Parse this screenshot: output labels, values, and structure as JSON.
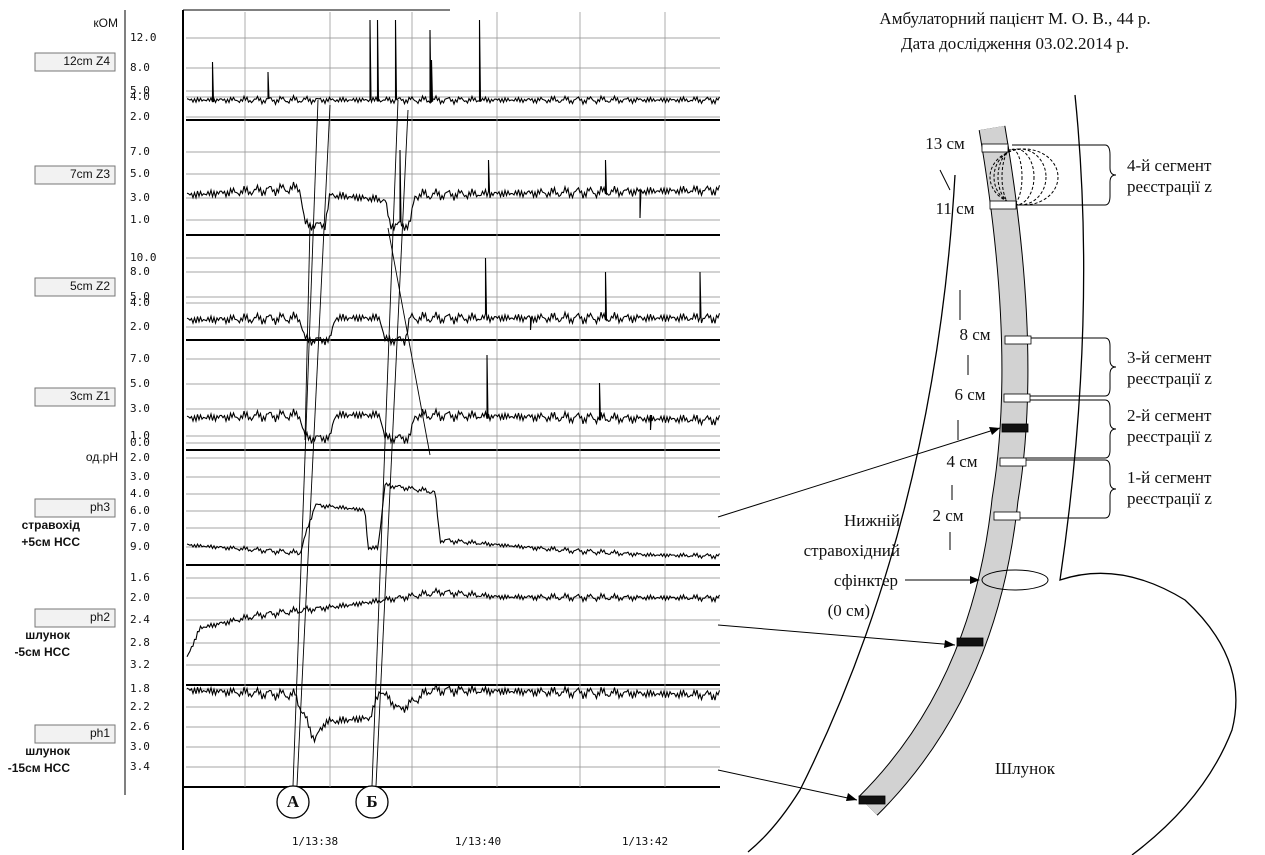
{
  "header": {
    "lines": [
      "Амбулаторний пацієнт М. О. В., 44 р.",
      "Дата дослідження 03.02.2014 р."
    ]
  },
  "recording": {
    "impedance_unit": "кОМ",
    "ph_unit": "од.pH",
    "channels": [
      {
        "button": "12cm Z4",
        "labels": [],
        "ticks": [
          "12.0",
          "8.0",
          "5.0",
          "4.0",
          "2.0"
        ]
      },
      {
        "button": "7cm Z3",
        "labels": [],
        "ticks": [
          "7.0",
          "5.0",
          "3.0",
          "1.0"
        ]
      },
      {
        "button": "5cm Z2",
        "labels": [],
        "ticks": [
          "10.0",
          "8.0",
          "5.0",
          "4.0",
          "2.0"
        ]
      },
      {
        "button": "3cm Z1",
        "labels": [],
        "ticks": [
          "7.0",
          "5.0",
          "3.0",
          "1.0",
          "0.0"
        ]
      },
      {
        "button": "ph3",
        "labels": [
          "стравохід",
          "+5см НСС"
        ],
        "ticks": [
          "2.0",
          "3.0",
          "4.0",
          "6.0",
          "7.0",
          "9.0"
        ]
      },
      {
        "button": "ph2",
        "labels": [
          "шлунок",
          "-5см НСС"
        ],
        "ticks": [
          "1.6",
          "2.0",
          "2.4",
          "2.8",
          "3.2"
        ]
      },
      {
        "button": "ph1",
        "labels": [
          "шлунок",
          "-15см НСС"
        ],
        "ticks": [
          "1.8",
          "2.2",
          "2.6",
          "3.0",
          "3.4"
        ]
      }
    ],
    "time_labels": [
      "1/13:38",
      "1/13:40",
      "1/13:42"
    ],
    "markers": [
      "А",
      "Б"
    ]
  },
  "diagram": {
    "cm_labels": [
      "13 см",
      "11 см",
      "8 см",
      "6 см",
      "4 см",
      "2 см"
    ],
    "segments": [
      {
        "line1": "4-й сегмент",
        "line2": "реєстрації z"
      },
      {
        "line1": "3-й сегмент",
        "line2": "реєстрації z"
      },
      {
        "line1": "2-й сегмент",
        "line2": "реєстрації z"
      },
      {
        "line1": "1-й сегмент",
        "line2": "реєстрації z"
      }
    ],
    "sphincter": [
      "Нижній",
      "стравохідний",
      "сфінктер",
      "(0 см)"
    ],
    "stomach": "Шлунок"
  }
}
